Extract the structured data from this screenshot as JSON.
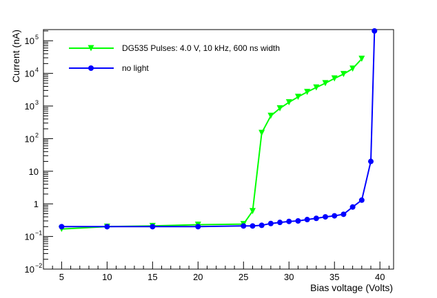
{
  "chart_data": {
    "type": "line",
    "title": "",
    "xlabel": "Bias voltage (Volts)",
    "ylabel": "Current (nA)",
    "xlim": [
      3,
      41.5
    ],
    "ylim": [
      0.01,
      220000
    ],
    "yscale": "log",
    "x_ticks": [
      5,
      10,
      15,
      20,
      25,
      30,
      35,
      40
    ],
    "x_tick_labels": [
      "5",
      "10",
      "15",
      "20",
      "25",
      "30",
      "35",
      "40"
    ],
    "y_ticks": [
      {
        "value": 0.01,
        "base": "10",
        "exp": "−2"
      },
      {
        "value": 0.1,
        "base": "10",
        "exp": "−1"
      },
      {
        "value": 1,
        "base": "1",
        "exp": ""
      },
      {
        "value": 10,
        "base": "10",
        "exp": ""
      },
      {
        "value": 100,
        "base": "10",
        "exp": "2"
      },
      {
        "value": 1000,
        "base": "10",
        "exp": "3"
      },
      {
        "value": 10000,
        "base": "10",
        "exp": "4"
      },
      {
        "value": 100000,
        "base": "10",
        "exp": "5"
      }
    ],
    "series": [
      {
        "name": "DG535 Pulses: 4.0 V, 10 kHz, 600 ns width",
        "color": "#00ff00",
        "marker": "triangle-down",
        "x": [
          5,
          10,
          15,
          20,
          25,
          26,
          27,
          28,
          29,
          30,
          31,
          32,
          33,
          34,
          35,
          36,
          37,
          38
        ],
        "values": [
          0.17,
          0.2,
          0.21,
          0.23,
          0.24,
          0.6,
          150,
          500,
          850,
          1300,
          1900,
          2700,
          3700,
          5000,
          7000,
          9500,
          14000,
          28000
        ]
      },
      {
        "name": "no light",
        "color": "#0000ff",
        "marker": "circle",
        "x": [
          5,
          10,
          15,
          20,
          25,
          26,
          27,
          28,
          29,
          30,
          31,
          32,
          33,
          34,
          35,
          36,
          37,
          38,
          39,
          39.4
        ],
        "values": [
          0.2,
          0.2,
          0.2,
          0.2,
          0.21,
          0.21,
          0.22,
          0.25,
          0.27,
          0.29,
          0.3,
          0.33,
          0.36,
          0.4,
          0.43,
          0.48,
          0.8,
          1.3,
          20,
          200000
        ]
      }
    ]
  }
}
